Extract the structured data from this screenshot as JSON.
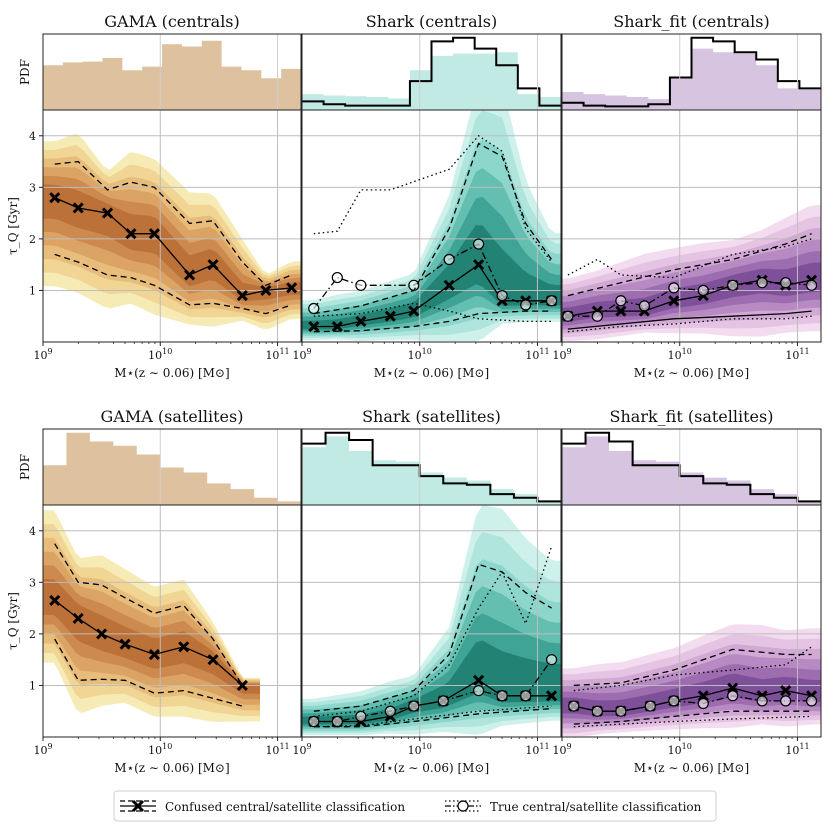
{
  "figure": {
    "colors": {
      "gama": "#c8995f",
      "gama_contour": [
        "#f6e7a8",
        "#efd18e",
        "#e6b977",
        "#d9a060",
        "#c9864a",
        "#b86c35"
      ],
      "shark": "#8ed8cf",
      "shark_contour": [
        "#c7eee8",
        "#a9e3db",
        "#86d3c8",
        "#5dbbad",
        "#389e90",
        "#1d7e70"
      ],
      "sharkfit": "#b793c6",
      "sharkfit_contour": [
        "#f1d6ec",
        "#e2bfe0",
        "#cfa5d2",
        "#b485c0",
        "#9867ad",
        "#7a4b96"
      ],
      "median": "#000000"
    },
    "common": {
      "pdf_label": "PDF",
      "ylabel": "τ_Q [Gyr]",
      "xlabel": "M⋆(z ∼ 0.06) [M⊙]",
      "xticks": [
        "10^9",
        "10^10",
        "10^11"
      ],
      "yticks": [
        "1",
        "2",
        "3",
        "4"
      ]
    },
    "legend": {
      "confused_label": "Confused central/satellite classification",
      "true_label": "True central/satellite classification"
    }
  },
  "chart_data": [
    {
      "type": "line",
      "panel": "gama_centrals",
      "title": "GAMA (centrals)",
      "xlim": [
        9,
        11.2
      ],
      "ylim": [
        0,
        4.5
      ],
      "histogram": [
        0.62,
        0.66,
        0.67,
        0.72,
        0.55,
        0.6,
        0.91,
        0.88,
        0.96,
        0.6,
        0.55,
        0.44,
        0.57
      ],
      "series": [
        {
          "name": "median",
          "style": "solid",
          "markers": "x",
          "x": [
            9.1,
            9.3,
            9.55,
            9.75,
            9.95,
            10.25,
            10.45,
            10.7,
            10.9,
            11.12
          ],
          "y": [
            2.8,
            2.6,
            2.5,
            2.1,
            2.1,
            1.3,
            1.5,
            0.9,
            1.0,
            1.05
          ]
        },
        {
          "name": "upper",
          "style": "dashed",
          "x": [
            9.1,
            9.3,
            9.55,
            9.75,
            9.95,
            10.25,
            10.45,
            10.7,
            10.9,
            11.12
          ],
          "y": [
            3.45,
            3.5,
            2.95,
            3.1,
            3.0,
            2.3,
            2.35,
            1.55,
            1.1,
            1.3
          ]
        },
        {
          "name": "lower",
          "style": "dashed",
          "x": [
            9.1,
            9.3,
            9.55,
            9.75,
            9.95,
            10.25,
            10.45,
            10.7,
            10.9,
            11.12
          ],
          "y": [
            1.7,
            1.55,
            1.3,
            1.25,
            1.1,
            0.72,
            0.75,
            0.65,
            0.55,
            0.72
          ]
        }
      ]
    },
    {
      "type": "line",
      "panel": "shark_centrals",
      "title": "Shark (centrals)",
      "xlim": [
        9,
        11.2
      ],
      "ylim": [
        0,
        4.5
      ],
      "histogram": [
        0.22,
        0.2,
        0.19,
        0.18,
        0.16,
        0.55,
        0.75,
        0.78,
        0.78,
        0.8,
        0.22,
        0.18
      ],
      "histogram_outline": [
        0.12,
        0.08,
        0.06,
        0.06,
        0.06,
        0.4,
        0.95,
        1.0,
        0.85,
        0.62,
        0.3,
        0.06
      ],
      "series": [
        {
          "name": "confused median",
          "style": "solid",
          "markers": "x",
          "x": [
            9.1,
            9.3,
            9.5,
            9.75,
            9.95,
            10.25,
            10.5,
            10.7,
            10.9,
            11.12
          ],
          "y": [
            0.3,
            0.3,
            0.4,
            0.5,
            0.6,
            1.1,
            1.5,
            0.8,
            0.8,
            0.8
          ]
        },
        {
          "name": "true median",
          "style": "dashdot",
          "markers": "o",
          "x": [
            9.1,
            9.3,
            9.5,
            9.95,
            10.25,
            10.5,
            10.7,
            10.9,
            11.12
          ],
          "y": [
            0.65,
            1.25,
            1.1,
            1.1,
            1.6,
            1.9,
            0.9,
            0.72,
            0.8
          ]
        },
        {
          "name": "confused upper",
          "style": "dashed",
          "x": [
            9.1,
            9.5,
            9.95,
            10.25,
            10.5,
            10.7,
            10.9,
            11.12
          ],
          "y": [
            0.55,
            0.7,
            1.0,
            2.2,
            3.85,
            3.6,
            2.3,
            1.6
          ]
        },
        {
          "name": "true upper",
          "style": "dotted",
          "x": [
            9.1,
            9.3,
            9.5,
            9.75,
            10.25,
            10.5,
            10.7,
            10.9,
            11.12
          ],
          "y": [
            2.1,
            2.15,
            2.95,
            2.95,
            3.35,
            4.0,
            3.7,
            2.2,
            1.55
          ]
        },
        {
          "name": "confused lower",
          "style": "dashed",
          "x": [
            9.1,
            9.5,
            9.95,
            10.25,
            10.5,
            10.9,
            11.12
          ],
          "y": [
            0.2,
            0.22,
            0.3,
            0.4,
            0.55,
            0.6,
            0.6
          ]
        },
        {
          "name": "true lower",
          "style": "dotted",
          "x": [
            9.1,
            9.5,
            9.95,
            10.25,
            10.5,
            10.9,
            11.12
          ],
          "y": [
            0.5,
            0.55,
            0.75,
            0.6,
            0.45,
            0.4,
            0.4
          ]
        }
      ]
    },
    {
      "type": "line",
      "panel": "sharkfit_centrals",
      "title": "Shark_fit (centrals)",
      "xlim": [
        9,
        11.2
      ],
      "ylim": [
        0,
        4.5
      ],
      "histogram": [
        0.25,
        0.22,
        0.2,
        0.18,
        0.15,
        0.45,
        0.85,
        0.8,
        0.78,
        0.62,
        0.3,
        0.28
      ],
      "histogram_outline": [
        0.1,
        0.06,
        0.05,
        0.05,
        0.08,
        0.45,
        1.0,
        0.95,
        0.8,
        0.7,
        0.4,
        0.3
      ],
      "series": [
        {
          "name": "confused median",
          "style": "solid",
          "markers": "x",
          "x": [
            9.05,
            9.3,
            9.5,
            9.7,
            9.95,
            10.2,
            10.45,
            10.7,
            10.9,
            11.12
          ],
          "y": [
            0.5,
            0.6,
            0.6,
            0.6,
            0.8,
            0.9,
            1.1,
            1.2,
            1.1,
            1.2
          ]
        },
        {
          "name": "true median",
          "style": "dashdot",
          "markers": "o",
          "x": [
            9.05,
            9.3,
            9.5,
            9.7,
            9.95,
            10.2,
            10.45,
            10.7,
            10.9,
            11.12
          ],
          "y": [
            0.5,
            0.5,
            0.8,
            0.7,
            1.05,
            1.0,
            1.1,
            1.15,
            1.15,
            1.1
          ]
        },
        {
          "name": "confused upper",
          "style": "dashed",
          "x": [
            9.05,
            9.5,
            9.95,
            10.45,
            10.9,
            11.12
          ],
          "y": [
            0.9,
            1.15,
            1.4,
            1.6,
            1.9,
            2.1
          ]
        },
        {
          "name": "true upper",
          "style": "dotted",
          "x": [
            9.05,
            9.3,
            9.5,
            9.95,
            10.45,
            10.9,
            11.12
          ],
          "y": [
            1.3,
            1.6,
            1.3,
            1.25,
            1.7,
            1.85,
            2.0
          ]
        },
        {
          "name": "confused lower",
          "style": "solid",
          "x": [
            9.05,
            9.5,
            9.95,
            10.45,
            10.9,
            11.12
          ],
          "y": [
            0.25,
            0.35,
            0.45,
            0.5,
            0.55,
            0.6
          ]
        },
        {
          "name": "true lower",
          "style": "dotted",
          "x": [
            9.05,
            9.5,
            9.95,
            10.45,
            10.9,
            11.12
          ],
          "y": [
            0.2,
            0.3,
            0.35,
            0.45,
            0.45,
            0.5
          ]
        }
      ]
    },
    {
      "type": "line",
      "panel": "gama_satellites",
      "title": "GAMA (satellites)",
      "xlim": [
        9,
        11.2
      ],
      "ylim": [
        0,
        4.5
      ],
      "histogram": [
        0.55,
        1.0,
        0.88,
        0.82,
        0.7,
        0.52,
        0.45,
        0.3,
        0.22,
        0.1,
        0.05
      ],
      "series": [
        {
          "name": "median",
          "style": "solid",
          "markers": "x",
          "x": [
            9.1,
            9.3,
            9.5,
            9.7,
            9.95,
            10.2,
            10.45,
            10.7
          ],
          "y": [
            2.65,
            2.3,
            2.0,
            1.8,
            1.6,
            1.75,
            1.5,
            1.0
          ]
        },
        {
          "name": "upper",
          "style": "dashed",
          "x": [
            9.1,
            9.3,
            9.5,
            9.7,
            9.95,
            10.2,
            10.45,
            10.7
          ],
          "y": [
            3.75,
            3.0,
            2.95,
            2.7,
            2.4,
            2.55,
            1.9,
            1.0
          ]
        },
        {
          "name": "lower",
          "style": "dashed",
          "x": [
            9.1,
            9.3,
            9.5,
            9.7,
            9.95,
            10.2,
            10.45,
            10.7
          ],
          "y": [
            1.9,
            1.1,
            1.12,
            1.1,
            0.85,
            0.9,
            0.75,
            0.6
          ]
        }
      ]
    },
    {
      "type": "line",
      "panel": "shark_satellites",
      "title": "Shark (satellites)",
      "xlim": [
        9,
        11.2
      ],
      "ylim": [
        0,
        4.5
      ],
      "histogram": [
        0.8,
        0.95,
        0.75,
        0.62,
        0.6,
        0.45,
        0.38,
        0.34,
        0.22,
        0.15,
        0.05
      ],
      "histogram_outline": [
        0.85,
        1.0,
        0.9,
        0.55,
        0.55,
        0.4,
        0.3,
        0.28,
        0.15,
        0.1,
        0.05
      ],
      "series": [
        {
          "name": "confused median",
          "style": "solid",
          "markers": "x",
          "x": [
            9.1,
            9.3,
            9.5,
            9.75,
            9.95,
            10.2,
            10.5,
            10.7,
            10.9,
            11.12
          ],
          "y": [
            0.3,
            0.3,
            0.3,
            0.4,
            0.6,
            0.7,
            1.1,
            0.8,
            0.8,
            0.8
          ]
        },
        {
          "name": "true median",
          "style": "dashdot",
          "markers": "o",
          "x": [
            9.1,
            9.3,
            9.5,
            9.75,
            9.95,
            10.2,
            10.5,
            10.7,
            10.9,
            11.12
          ],
          "y": [
            0.3,
            0.3,
            0.4,
            0.5,
            0.6,
            0.7,
            0.9,
            0.8,
            0.8,
            1.5
          ]
        },
        {
          "name": "confused upper",
          "style": "dashed",
          "x": [
            9.1,
            9.5,
            9.95,
            10.25,
            10.5,
            10.7,
            10.9,
            11.12
          ],
          "y": [
            0.5,
            0.6,
            0.9,
            1.6,
            3.35,
            3.2,
            2.8,
            2.5
          ]
        },
        {
          "name": "true upper",
          "style": "dotted",
          "x": [
            9.1,
            9.5,
            9.95,
            10.25,
            10.5,
            10.7,
            10.9,
            11.12
          ],
          "y": [
            0.4,
            0.5,
            0.8,
            1.4,
            2.5,
            3.2,
            2.2,
            3.7
          ]
        },
        {
          "name": "confused lower",
          "style": "dashed",
          "x": [
            9.1,
            9.5,
            9.95,
            10.5,
            11.12
          ],
          "y": [
            0.2,
            0.2,
            0.3,
            0.45,
            0.55
          ]
        },
        {
          "name": "true lower",
          "style": "dotted",
          "x": [
            9.1,
            9.5,
            9.95,
            10.5,
            11.12
          ],
          "y": [
            0.2,
            0.22,
            0.35,
            0.5,
            0.6
          ]
        }
      ]
    },
    {
      "type": "line",
      "panel": "sharkfit_satellites",
      "title": "Shark_fit (satellites)",
      "xlim": [
        9,
        11.2
      ],
      "ylim": [
        0,
        4.5
      ],
      "histogram": [
        0.8,
        0.95,
        0.75,
        0.62,
        0.6,
        0.45,
        0.38,
        0.34,
        0.22,
        0.15,
        0.05
      ],
      "histogram_outline": [
        0.85,
        1.0,
        0.88,
        0.55,
        0.55,
        0.4,
        0.3,
        0.28,
        0.15,
        0.1,
        0.05
      ],
      "series": [
        {
          "name": "confused median",
          "style": "solid",
          "markers": "x",
          "x": [
            9.1,
            9.3,
            9.5,
            9.75,
            9.95,
            10.2,
            10.45,
            10.7,
            10.9,
            11.12
          ],
          "y": [
            0.6,
            0.5,
            0.5,
            0.6,
            0.7,
            0.8,
            0.95,
            0.8,
            0.9,
            0.8
          ]
        },
        {
          "name": "true median",
          "style": "dashdot",
          "markers": "o",
          "x": [
            9.1,
            9.3,
            9.5,
            9.75,
            9.95,
            10.2,
            10.45,
            10.7,
            10.9,
            11.12
          ],
          "y": [
            0.6,
            0.5,
            0.5,
            0.6,
            0.7,
            0.65,
            0.8,
            0.7,
            0.7,
            0.7
          ]
        },
        {
          "name": "confused upper",
          "style": "dashed",
          "x": [
            9.1,
            9.5,
            9.95,
            10.45,
            10.9,
            11.12
          ],
          "y": [
            1.0,
            1.05,
            1.3,
            1.7,
            1.6,
            1.6
          ]
        },
        {
          "name": "true upper",
          "style": "dotted",
          "x": [
            9.1,
            9.5,
            9.95,
            10.45,
            10.9,
            11.12
          ],
          "y": [
            0.9,
            1.0,
            1.2,
            1.3,
            1.4,
            1.75
          ]
        },
        {
          "name": "confused lower",
          "style": "dashed",
          "x": [
            9.1,
            9.5,
            9.95,
            10.45,
            11.12
          ],
          "y": [
            0.25,
            0.3,
            0.4,
            0.5,
            0.5
          ]
        },
        {
          "name": "true lower",
          "style": "dotted",
          "x": [
            9.1,
            9.5,
            9.95,
            10.45,
            11.12
          ],
          "y": [
            0.2,
            0.25,
            0.3,
            0.35,
            0.4
          ]
        }
      ]
    }
  ]
}
